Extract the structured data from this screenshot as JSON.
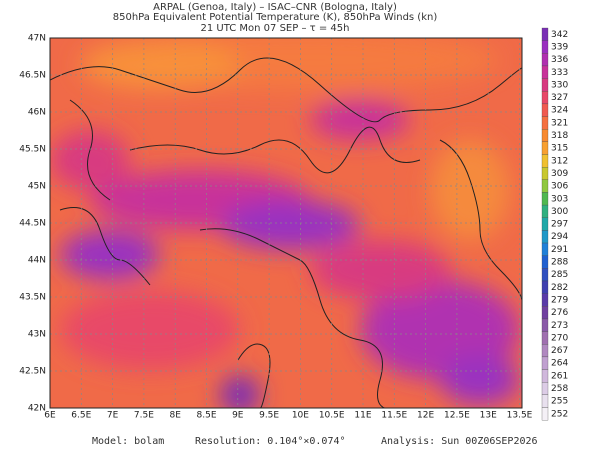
{
  "header": {
    "line1": "ARPAL (Genoa, Italy)  –  ISAC–CNR (Bologna, Italy)",
    "line2": "850hPa Equivalent Potential Temperature (K), 850hPa Winds (kn)",
    "line3": "21 UTC Mon 07 SEP  –  τ = 45h"
  },
  "lat_labels": [
    "47N",
    "46.5N",
    "46N",
    "45.5N",
    "45N",
    "44.5N",
    "44N",
    "43.5N",
    "43N",
    "42.5N",
    "42N"
  ],
  "lon_labels": [
    "6E",
    "6.5E",
    "7E",
    "7.5E",
    "8E",
    "8.5E",
    "9E",
    "9.5E",
    "10E",
    "10.5E",
    "11E",
    "11.5E",
    "12E",
    "12.5E",
    "13E",
    "13.5E"
  ],
  "colorbar": {
    "labels": [
      "342",
      "339",
      "336",
      "333",
      "330",
      "327",
      "324",
      "321",
      "318",
      "315",
      "312",
      "309",
      "306",
      "303",
      "300",
      "297",
      "294",
      "291",
      "288",
      "285",
      "282",
      "279",
      "276",
      "273",
      "270",
      "267",
      "264",
      "261",
      "258",
      "255",
      "252"
    ],
    "colors": [
      "#7a2fb5",
      "#9a30c0",
      "#b030b0",
      "#c8329a",
      "#d83a80",
      "#e84868",
      "#f05a50",
      "#f57040",
      "#f88a30",
      "#f8a030",
      "#f0c030",
      "#c8c830",
      "#90c840",
      "#50b850",
      "#30b080",
      "#20a8a8",
      "#2098c8",
      "#2080d8",
      "#2060d0",
      "#3050c0",
      "#4040b0",
      "#5a3aa8",
      "#7040a0",
      "#8a5aa8",
      "#a070b0",
      "#b088c0",
      "#c0a0d0",
      "#d0b8dc",
      "#dcccE6",
      "#e8e0ee",
      "#f4f0f6"
    ]
  },
  "footer": {
    "model": "Model: bolam",
    "resolution": "Resolution: 0.104°×0.074°",
    "analysis": "Analysis: Sun 00Z06SEP2026"
  }
}
